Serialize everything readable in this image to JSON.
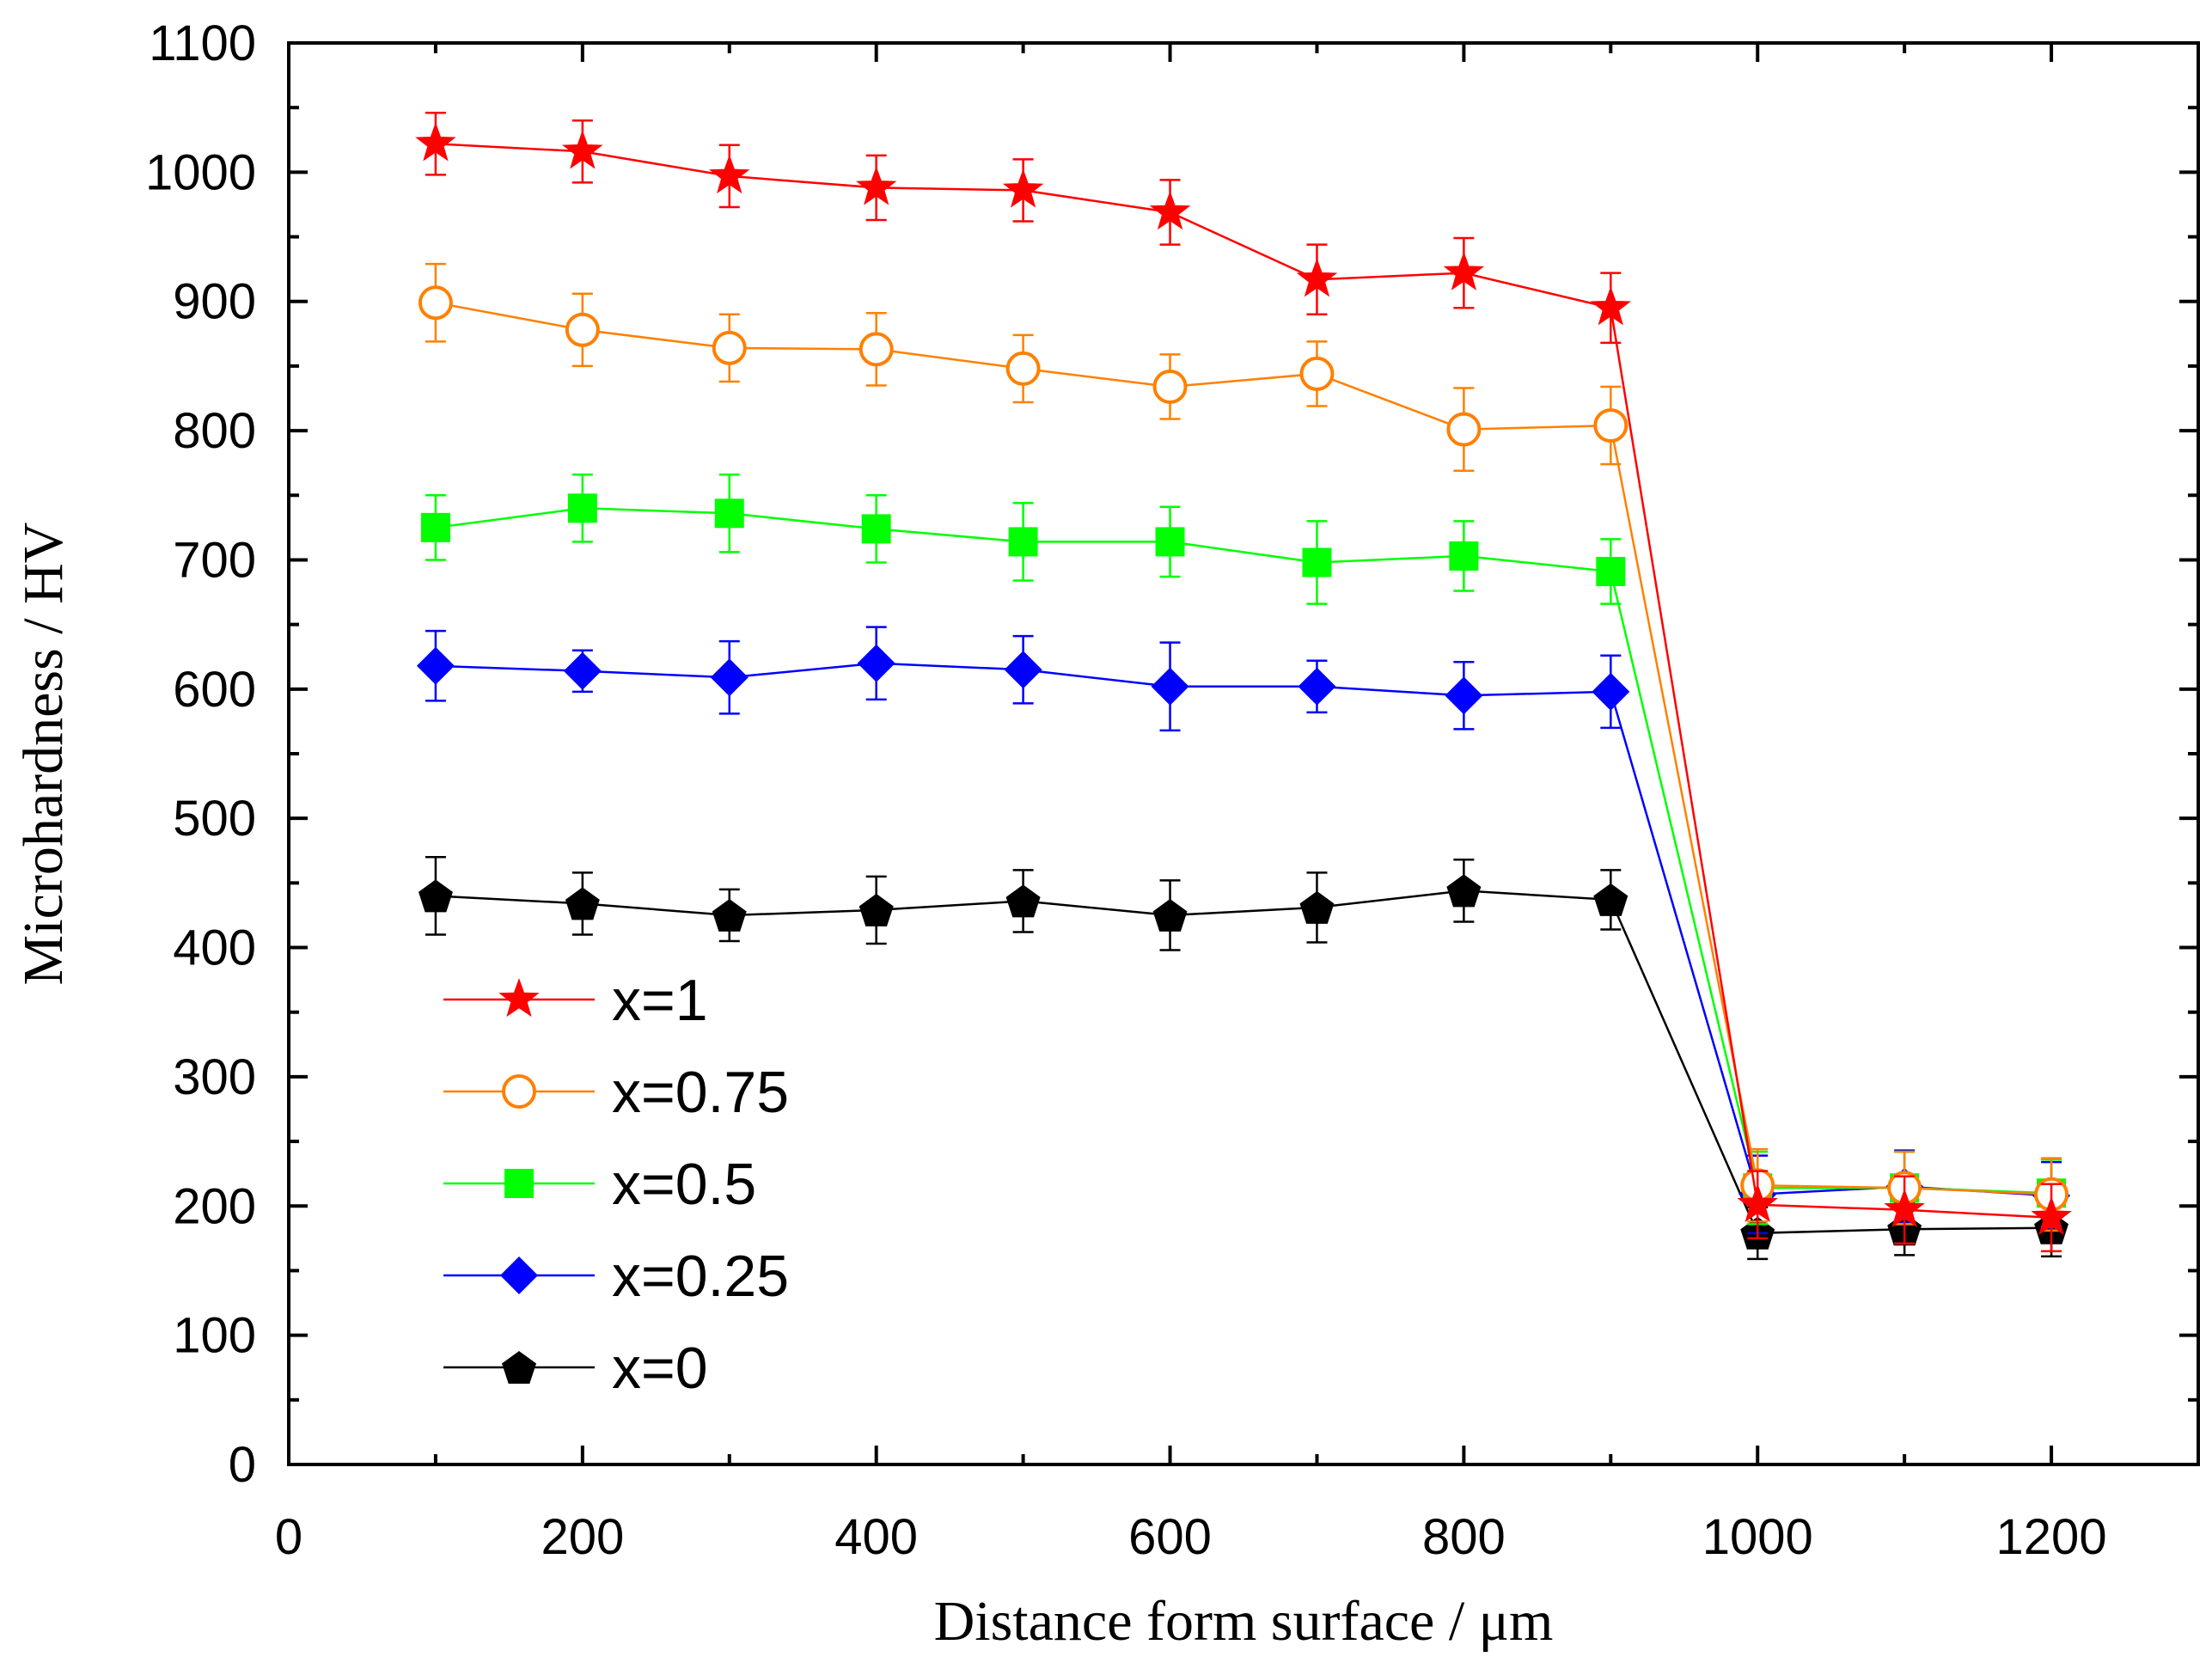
{
  "chart_data": {
    "type": "line",
    "title": "",
    "xlabel": "Distance form surface / μm",
    "ylabel": "Microhardness / HV",
    "xlim": [
      0,
      1300
    ],
    "ylim": [
      0,
      1100
    ],
    "x_ticks": [
      "0",
      "200",
      "400",
      "600",
      "800",
      "1000",
      "1200"
    ],
    "y_ticks": [
      "0",
      "100",
      "200",
      "300",
      "400",
      "500",
      "600",
      "700",
      "800",
      "900",
      "1000",
      "1100"
    ],
    "grid": false,
    "legend_position": "bottom-left",
    "x": [
      100,
      200,
      300,
      400,
      500,
      600,
      700,
      800,
      900,
      1000,
      1100,
      1200
    ],
    "series": [
      {
        "name": "x=1",
        "color": "#ff0000",
        "marker": "star",
        "values": [
          1022,
          1016,
          997,
          988,
          986,
          969,
          917,
          922,
          895,
          201,
          197,
          191
        ],
        "errors": [
          24,
          24,
          24,
          25,
          24,
          25,
          27,
          27,
          27,
          26,
          26,
          26
        ]
      },
      {
        "name": "x=0.75",
        "color": "#ff8000",
        "marker": "open-circle",
        "values": [
          899,
          878,
          864,
          863,
          848,
          834,
          844,
          801,
          804,
          216,
          214,
          209
        ],
        "errors": [
          30,
          28,
          26,
          28,
          26,
          25,
          25,
          32,
          30,
          28,
          28,
          28
        ]
      },
      {
        "name": "x=0.5",
        "color": "#00ff00",
        "marker": "square",
        "values": [
          725,
          740,
          736,
          724,
          714,
          714,
          698,
          703,
          691,
          214,
          214,
          210
        ],
        "errors": [
          25,
          26,
          30,
          26,
          30,
          27,
          32,
          27,
          25,
          28,
          28,
          26
        ]
      },
      {
        "name": "x=0.25",
        "color": "#0000ff",
        "marker": "diamond",
        "values": [
          618,
          614,
          609,
          620,
          615,
          602,
          602,
          595,
          598,
          209,
          215,
          208
        ],
        "errors": [
          27,
          16,
          28,
          28,
          26,
          34,
          20,
          26,
          28,
          30,
          28,
          26
        ]
      },
      {
        "name": "x=0",
        "color": "#000000",
        "marker": "pentagon",
        "values": [
          440,
          434,
          425,
          429,
          436,
          425,
          431,
          444,
          437,
          179,
          182,
          183
        ],
        "errors": [
          30,
          24,
          20,
          26,
          24,
          27,
          27,
          24,
          23,
          20,
          20,
          22
        ]
      }
    ]
  }
}
